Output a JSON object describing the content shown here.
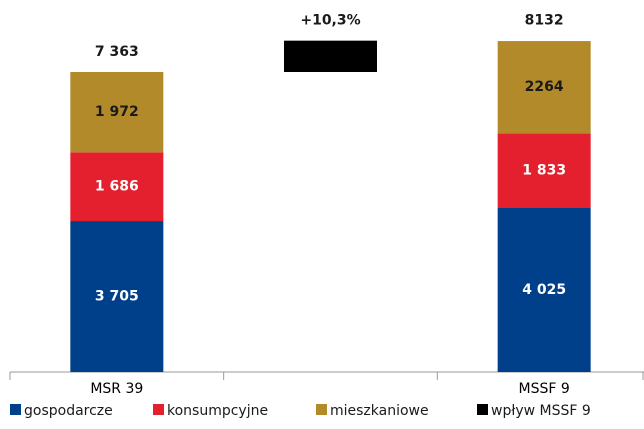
{
  "chart_data": {
    "type": "stacked_bar",
    "categories": [
      "MSR 39",
      null,
      "MSSF 9"
    ],
    "series": [
      {
        "name": "gospodarcze",
        "color": "#003f8a",
        "label_color": "#ffffff",
        "values": [
          3705,
          null,
          4025
        ],
        "value_labels": [
          "3 705",
          null,
          "4 025"
        ]
      },
      {
        "name": "konsumpcyjne",
        "color": "#e4202f",
        "label_color": "#ffffff",
        "values": [
          1686,
          null,
          1833
        ],
        "value_labels": [
          "1 686",
          null,
          "1 833"
        ]
      },
      {
        "name": "mieszkaniowe",
        "color": "#b38a2a",
        "label_color": "#1a1a1a",
        "values": [
          1972,
          null,
          2264
        ],
        "value_labels": [
          "1 972",
          null,
          "2264"
        ]
      },
      {
        "name": "wpływ MSSF 9",
        "color": "#000000",
        "values": [
          null,
          769,
          null
        ]
      }
    ],
    "totals": [
      7363,
      null,
      8132
    ],
    "total_labels": [
      "7 363",
      null,
      "8132"
    ],
    "annotation": "+10,3%",
    "ylim": [
      0,
      9130
    ],
    "legend": "bottom"
  }
}
